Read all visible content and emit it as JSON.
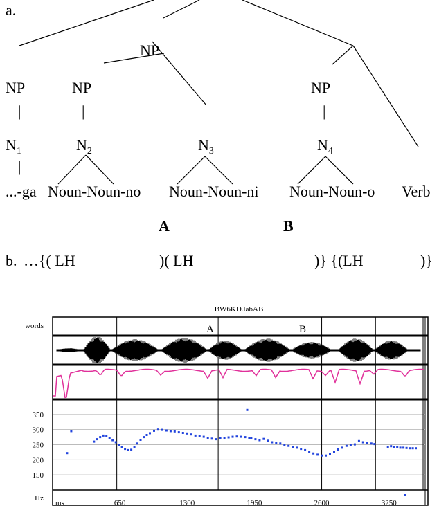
{
  "tree": {
    "part_label": "a.",
    "np_top": "NP",
    "np1": "NP",
    "np2": "NP",
    "np4": "NP",
    "bar": "|",
    "n1": {
      "base": "N",
      "sub": "1"
    },
    "n2": {
      "base": "N",
      "sub": "2"
    },
    "n3": {
      "base": "N",
      "sub": "3"
    },
    "n4": {
      "base": "N",
      "sub": "4"
    },
    "words": [
      "...-ga",
      "Noun-Noun-no",
      "Noun-Noun-ni",
      "Noun-Noun-o",
      "Verb"
    ],
    "label_a": "A",
    "label_b": "B"
  },
  "phrasing": {
    "part_label": "b.",
    "segments": [
      "…{( LH",
      ")( LH",
      ")} {(LH",
      ")}"
    ]
  },
  "plot": {
    "title": "BW6KD.labAB",
    "row_words_label": "words",
    "marker_a": "A",
    "marker_b": "B",
    "y_unit": "Hz",
    "x_unit": "ms",
    "pitch_color": "#2244dd",
    "intensity_color": "#e0309a",
    "chart_data": {
      "type": "scatter",
      "title": "BW6KD.labAB",
      "xlabel": "ms",
      "ylabel": "Hz",
      "xlim": [
        0,
        3600
      ],
      "ylim": [
        100,
        400
      ],
      "xticks": [
        650,
        1300,
        1950,
        2600,
        3250
      ],
      "yticks": [
        150,
        200,
        250,
        300,
        350
      ],
      "word_boundaries_ms": [
        620,
        1600,
        2600,
        3120,
        3580
      ],
      "marker_a_ms": 1600,
      "marker_b_ms": 2600,
      "f0": {
        "x": [
          140,
          180,
          400,
          430,
          460,
          490,
          520,
          550,
          580,
          610,
          640,
          670,
          700,
          730,
          760,
          790,
          820,
          850,
          880,
          910,
          940,
          980,
          1020,
          1060,
          1100,
          1140,
          1180,
          1220,
          1260,
          1300,
          1340,
          1380,
          1420,
          1460,
          1500,
          1540,
          1580,
          1620,
          1660,
          1700,
          1740,
          1780,
          1820,
          1860,
          1880,
          1900,
          1920,
          1960,
          2000,
          2040,
          2080,
          2120,
          2160,
          2200,
          2240,
          2280,
          2320,
          2360,
          2400,
          2440,
          2480,
          2520,
          2560,
          2600,
          2640,
          2680,
          2720,
          2760,
          2800,
          2840,
          2880,
          2920,
          2960,
          3000,
          3040,
          3080,
          3110,
          3240,
          3270,
          3300,
          3330,
          3360,
          3390,
          3420,
          3450,
          3480,
          3510
        ],
        "y": [
          222,
          295,
          260,
          268,
          275,
          280,
          278,
          272,
          265,
          258,
          250,
          242,
          236,
          232,
          233,
          242,
          254,
          266,
          275,
          282,
          288,
          296,
          300,
          299,
          297,
          295,
          294,
          291,
          289,
          287,
          284,
          280,
          278,
          276,
          272,
          270,
          268,
          271,
          272,
          274,
          276,
          277,
          276,
          275,
          365,
          273,
          272,
          268,
          265,
          269,
          263,
          258,
          255,
          254,
          250,
          246,
          243,
          240,
          236,
          232,
          226,
          221,
          217,
          214,
          214,
          219,
          226,
          234,
          240,
          246,
          248,
          251,
          262,
          258,
          256,
          254,
          252,
          243,
          245,
          241,
          241,
          240,
          240,
          239,
          238,
          238,
          238
        ]
      }
    }
  }
}
